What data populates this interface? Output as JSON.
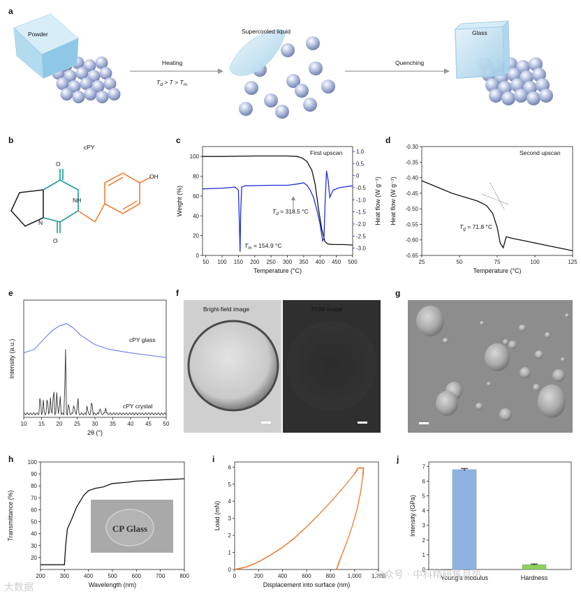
{
  "panels": {
    "a": {
      "label": "a",
      "powder": "Powder",
      "heating": "Heating",
      "heating_cond_Td": "T",
      "heating_cond_Td_sub": "d",
      "heating_cond_mid": " > T > ",
      "heating_cond_Tm": "T",
      "heating_cond_Tm_sub": "m",
      "supercooled": "Supercooled liquid",
      "quenching": "Quenching",
      "glass": "Glass"
    },
    "b": {
      "label": "b",
      "title": "cPY",
      "atom_NH": "NH",
      "atom_N": "N",
      "atom_O1": "O",
      "atom_O2": "O",
      "atom_OH": "OH",
      "colors": {
        "ring": "#1a9a95",
        "side": "#ee7f36",
        "bond": "#222222"
      }
    },
    "c": {
      "label": "c",
      "title": "First upscan",
      "td_label": "T",
      "td_sub": "d",
      "td_value": " = 318.5 °C",
      "tm_label": "T",
      "tm_sub": "m",
      "tm_value": " = 154.9 °C",
      "colors": {
        "weight": "#111111",
        "heat": "#1f2fd6"
      }
    },
    "d": {
      "label": "d",
      "title": "Second upscan",
      "tg_label": "T",
      "tg_sub": "g",
      "tg_value": " = 71.8 °C"
    },
    "e": {
      "label": "e",
      "glass": "cPY glass",
      "crystal": "cPY crystal",
      "colors": {
        "glass": "#5b6ff0",
        "crystal": "#333333"
      }
    },
    "f": {
      "label": "f",
      "bright": "Bright-field image",
      "pom": "POM image"
    },
    "g": {
      "label": "g"
    },
    "h": {
      "label": "h",
      "inset_text": "CP Glass"
    },
    "i": {
      "label": "i",
      "color": "#e8792b"
    },
    "j": {
      "label": "j",
      "colors": {
        "modulus": "#8fb3e0",
        "hardness": "#8fd05a"
      }
    }
  },
  "watermark": {
    "left": "大数据",
    "right": "公众号 · 中科精研售月热"
  },
  "chart_data": [
    {
      "panel": "c",
      "type": "line",
      "title": "First upscan",
      "xlabel": "Temperature (°C)",
      "ylabel": "Weight (%)",
      "y2label": "Heat flow (W g⁻¹)",
      "xlim": [
        40,
        500
      ],
      "ylim": [
        0,
        110
      ],
      "y2lim": [
        -3.3,
        1.2
      ],
      "xticks": [
        50,
        100,
        150,
        200,
        250,
        300,
        350,
        400,
        450,
        500
      ],
      "yticks": [
        0,
        20,
        40,
        60,
        80,
        100
      ],
      "y2ticks": [
        "1.0",
        "0.5",
        "0",
        "-0.5",
        "-1.0",
        "-1.5",
        "-2.0",
        "-2.5",
        "-3.0"
      ],
      "series": [
        {
          "name": "Weight (%)",
          "axis": "left",
          "x": [
            40,
            100,
            200,
            300,
            330,
            345,
            360,
            375,
            385,
            395,
            405,
            415,
            425,
            440,
            470,
            500
          ],
          "y": [
            100,
            100,
            100.5,
            100.5,
            100,
            98.5,
            95,
            86,
            72,
            48,
            27,
            14,
            11.5,
            11,
            11,
            10.5
          ]
        },
        {
          "name": "Heat flow (W g⁻¹)",
          "axis": "right",
          "x": [
            40,
            100,
            140,
            150,
            153,
            155,
            157,
            160,
            170,
            250,
            300,
            330,
            350,
            360,
            370,
            380,
            390,
            400,
            408,
            412,
            416,
            420,
            425,
            430,
            440,
            460,
            500
          ],
          "y": [
            -0.55,
            -0.52,
            -0.48,
            -0.6,
            -2.0,
            -3.15,
            -1.5,
            -0.48,
            -0.42,
            -0.4,
            -0.4,
            -0.35,
            -0.3,
            -0.4,
            -0.6,
            -0.9,
            -1.4,
            -2.0,
            -2.7,
            -2.6,
            -1.0,
            0.2,
            -0.2,
            -0.9,
            -0.6,
            -0.5,
            -0.42
          ]
        }
      ],
      "annotations": [
        "T_d = 318.5 °C",
        "T_m = 154.9 °C"
      ]
    },
    {
      "panel": "d",
      "type": "line",
      "title": "Second upscan",
      "xlabel": "Temperature (°C)",
      "ylabel": "Heat flow (W g⁻¹)",
      "xlim": [
        25,
        125
      ],
      "ylim": [
        -0.65,
        -0.3
      ],
      "xticks": [
        25,
        50,
        75,
        100,
        125
      ],
      "yticks": [
        "-0.30",
        "-0.35",
        "-0.40",
        "-0.45",
        "-0.50",
        "-0.55",
        "-0.60",
        "-0.65"
      ],
      "series": [
        {
          "name": "heat flow",
          "x": [
            25,
            35,
            45,
            55,
            62,
            68,
            72,
            75,
            77,
            79,
            81,
            85,
            95,
            110,
            125
          ],
          "y": [
            -0.41,
            -0.43,
            -0.45,
            -0.465,
            -0.475,
            -0.49,
            -0.515,
            -0.56,
            -0.61,
            -0.625,
            -0.59,
            -0.595,
            -0.605,
            -0.62,
            -0.635
          ]
        }
      ],
      "annotations": [
        "T_g = 71.8 °C"
      ]
    },
    {
      "panel": "e",
      "type": "line",
      "xlabel": "2θ (°)",
      "ylabel": "Intensity (a.u.)",
      "xlim": [
        10,
        50
      ],
      "xticks": [
        10,
        15,
        20,
        25,
        30,
        35,
        40,
        45,
        50
      ],
      "series": [
        {
          "name": "cPY glass",
          "x": [
            10,
            13,
            16,
            18,
            20,
            22,
            24,
            26,
            28,
            30,
            34,
            40,
            45,
            50
          ],
          "y": [
            0.55,
            0.58,
            0.68,
            0.74,
            0.78,
            0.8,
            0.76,
            0.7,
            0.66,
            0.62,
            0.58,
            0.55,
            0.53,
            0.51
          ]
        },
        {
          "name": "cPY crystal",
          "x": [
            14.6,
            15.5,
            16.6,
            17.5,
            18.4,
            19.3,
            20.2,
            21.7,
            22.6,
            24.1,
            25.2,
            27.8,
            29.1,
            31.4,
            33
          ],
          "y": [
            0.2,
            0.12,
            0.18,
            0.14,
            0.28,
            0.22,
            0.18,
            0.66,
            0.12,
            0.1,
            0.16,
            0.08,
            0.14,
            0.06,
            0.05
          ]
        }
      ]
    },
    {
      "panel": "h",
      "type": "line",
      "xlabel": "Wavelength (nm)",
      "ylabel": "Transmittance (%)",
      "xlim": [
        200,
        800
      ],
      "ylim": [
        10,
        100
      ],
      "xticks": [
        200,
        300,
        400,
        500,
        600,
        700,
        800
      ],
      "yticks": [
        20,
        30,
        40,
        50,
        60,
        70,
        80,
        90,
        100
      ],
      "series": [
        {
          "name": "transmittance",
          "x": [
            200,
            240,
            290,
            300,
            305,
            312,
            330,
            350,
            380,
            400,
            430,
            460,
            500,
            560,
            600,
            700,
            800
          ],
          "y": [
            14,
            14,
            14,
            14,
            30,
            44,
            52,
            62,
            72,
            76,
            78,
            79,
            82,
            83,
            84,
            85,
            86
          ]
        }
      ]
    },
    {
      "panel": "i",
      "type": "scatter",
      "xlabel": "Displacement into surface (nm)",
      "ylabel": "Load (mN)",
      "xlim": [
        0,
        1200
      ],
      "ylim": [
        0,
        6.3
      ],
      "xticks": [
        "0",
        "200",
        "400",
        "600",
        "800",
        "1,000",
        "1,200"
      ],
      "yticks": [
        0,
        1,
        2,
        3,
        4,
        5,
        6
      ],
      "series": [
        {
          "name": "loading",
          "x": [
            0,
            100,
            200,
            300,
            400,
            500,
            600,
            700,
            800,
            900,
            1000,
            1030
          ],
          "y": [
            0,
            0.15,
            0.45,
            0.85,
            1.3,
            1.85,
            2.5,
            3.2,
            3.95,
            4.75,
            5.6,
            5.95
          ]
        },
        {
          "name": "hold",
          "x": [
            1030,
            1075
          ],
          "y": [
            5.95,
            5.95
          ]
        },
        {
          "name": "unloading",
          "x": [
            1075,
            1070,
            1050,
            1020,
            980,
            930,
            880,
            850
          ],
          "y": [
            5.95,
            5.5,
            4.5,
            3.5,
            2.5,
            1.5,
            0.6,
            0
          ]
        }
      ]
    },
    {
      "panel": "j",
      "type": "bar",
      "ylabel": "Intensity (GPa)",
      "ylim": [
        0,
        7.3
      ],
      "yticks": [
        0,
        1,
        2,
        3,
        4,
        5,
        6,
        7
      ],
      "categories": [
        "Young's modulus",
        "Hardness"
      ],
      "values": [
        6.78,
        0.33
      ],
      "errors": [
        0.08,
        0.04
      ]
    }
  ]
}
